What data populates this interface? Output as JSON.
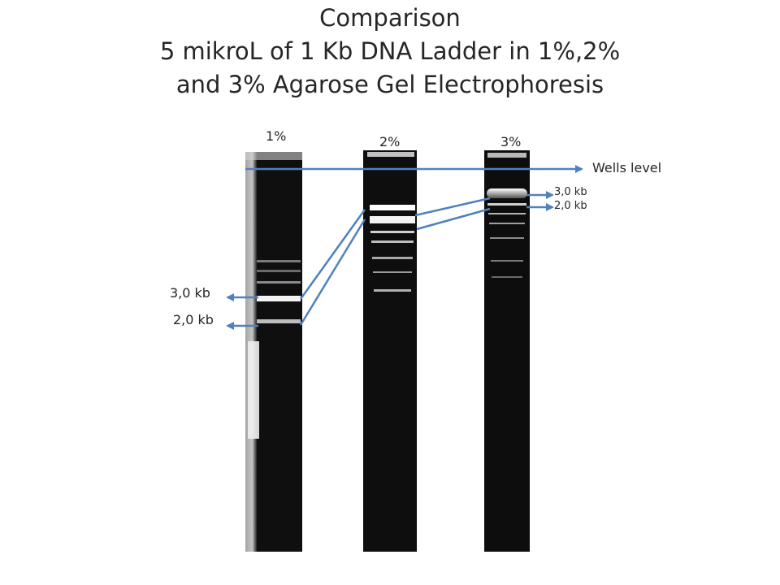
{
  "title": {
    "line1": "Comparison",
    "line2": "5 mikroL of 1 Kb DNA Ladder in 1%,2%",
    "line3": "and 3% Agarose Gel Electrophoresis"
  },
  "lanes": [
    {
      "label": "1%"
    },
    {
      "label": "2%"
    },
    {
      "label": "3%"
    }
  ],
  "annotations": {
    "wells_level": "Wells level",
    "lane1_3kb": "3,0 kb",
    "lane1_2kb": "2,0 kb",
    "lane3_3kb": "3,0 kb",
    "lane3_2kb": "2,0 kb"
  },
  "colors": {
    "arrow": "#4f81bd",
    "gel": "#0e0e0e",
    "band": "#f2f2f2"
  }
}
